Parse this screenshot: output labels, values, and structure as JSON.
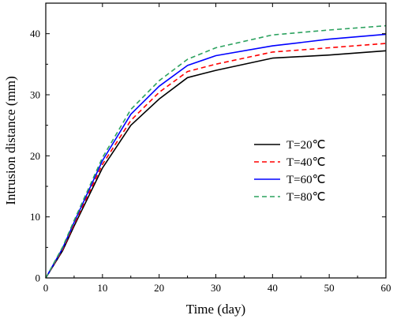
{
  "chart_data": {
    "type": "line",
    "title": "",
    "xlabel": "Time (day)",
    "ylabel": "Intrusion distance (mm)",
    "xlim": [
      0,
      60
    ],
    "ylim": [
      0,
      45
    ],
    "xticks": [
      0,
      10,
      20,
      30,
      40,
      50,
      60
    ],
    "yticks": [
      0,
      10,
      20,
      30,
      40
    ],
    "grid": false,
    "legend_position": "right",
    "x": [
      0,
      3,
      5,
      10,
      15,
      20,
      25,
      30,
      40,
      50,
      60
    ],
    "series": [
      {
        "name": "T=20℃",
        "color": "#000000",
        "dash": "solid",
        "values": [
          0,
          4.5,
          8.5,
          18.0,
          25.0,
          29.3,
          32.8,
          34.0,
          36.0,
          36.5,
          37.2
        ]
      },
      {
        "name": "T=40℃",
        "color": "#ff0000",
        "dash": "dashed",
        "values": [
          0,
          4.7,
          8.8,
          18.6,
          25.8,
          30.4,
          33.8,
          35.0,
          37.0,
          37.7,
          38.4
        ]
      },
      {
        "name": "T=60℃",
        "color": "#0000ff",
        "dash": "solid",
        "values": [
          0,
          4.9,
          9.1,
          19.2,
          26.8,
          31.4,
          34.8,
          36.4,
          38.0,
          39.1,
          39.9
        ]
      },
      {
        "name": "T=80℃",
        "color": "#2ca25f",
        "dash": "dashed",
        "values": [
          0,
          5.1,
          9.4,
          19.7,
          27.6,
          32.3,
          35.8,
          37.7,
          39.8,
          40.6,
          41.3
        ]
      }
    ]
  }
}
